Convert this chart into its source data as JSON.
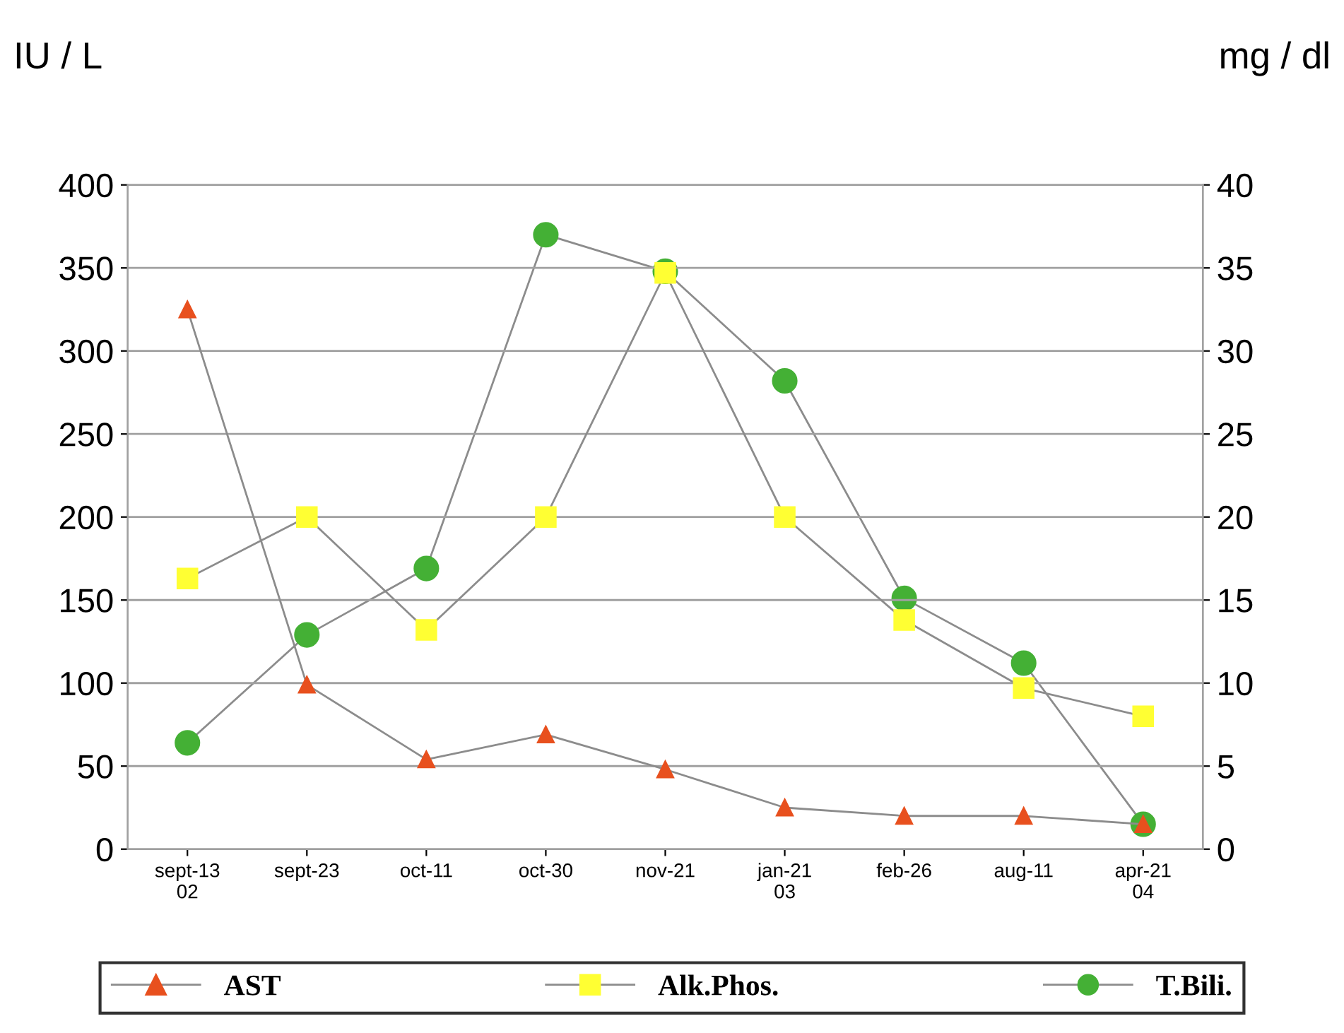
{
  "chart_data": {
    "type": "line",
    "ylabel": "IU / L",
    "y2label": "mg / dl",
    "categories": [
      "sept-13\n02",
      "sept-23",
      "oct-11",
      "oct-30",
      "nov-21",
      "jan-21\n03",
      "feb-26",
      "aug-11",
      "apr-21\n04"
    ],
    "series": [
      {
        "name": "AST",
        "color": "#e8501e",
        "marker": "triangle",
        "values": [
          325,
          99,
          54,
          69,
          48,
          25,
          20,
          20,
          15
        ]
      },
      {
        "name": "Alk.Phos.",
        "color": "#ffff33",
        "marker": "square",
        "values": [
          163,
          200,
          132,
          200,
          347,
          200,
          138,
          97,
          80
        ]
      },
      {
        "name": "T.Bili.",
        "color": "#44b035",
        "marker": "circle",
        "axis": "y2",
        "values": [
          6.4,
          12.9,
          16.9,
          37.0,
          34.8,
          28.2,
          15.1,
          11.2,
          1.5
        ]
      }
    ],
    "ylim": [
      0,
      400
    ],
    "yticks": [
      0,
      50,
      100,
      150,
      200,
      250,
      300,
      350,
      400
    ],
    "y2lim": [
      0,
      40
    ],
    "y2ticks": [
      0,
      5,
      10,
      15,
      20,
      25,
      30,
      35,
      40
    ],
    "grid": "y",
    "legend": "bottom",
    "line_style": "solid"
  }
}
